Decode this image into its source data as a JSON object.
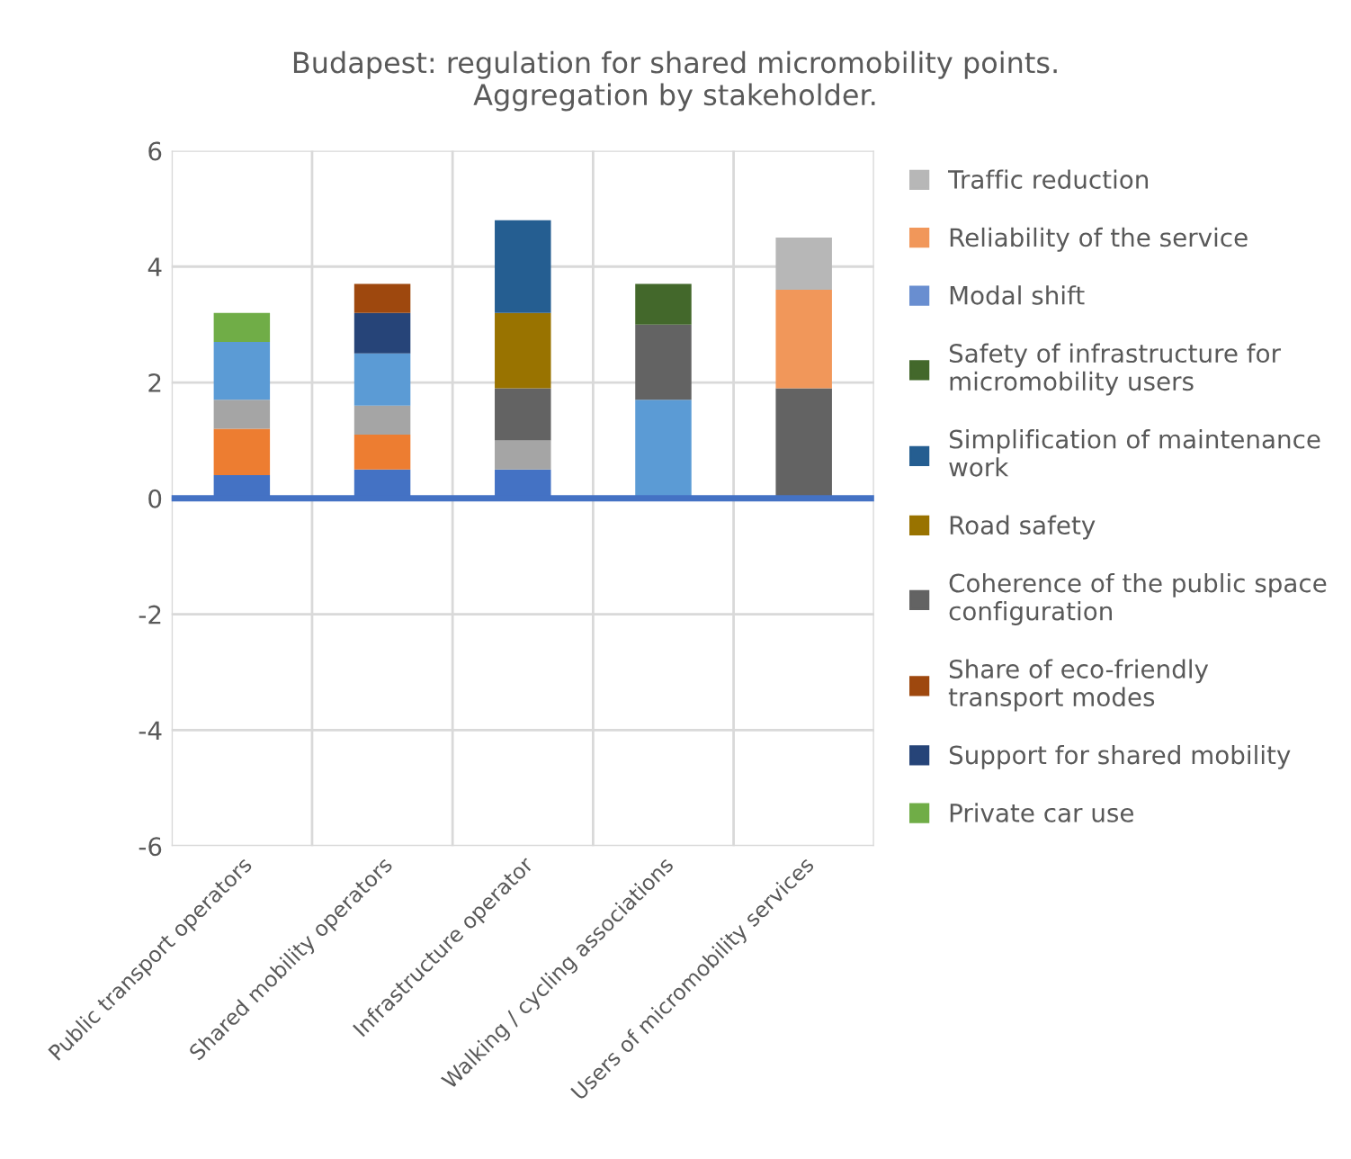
{
  "chart_data": {
    "type": "bar",
    "stacked": true,
    "title": "Budapest: regulation for shared micromobility points. Aggregation by stakeholder.",
    "categories": [
      "Public transport operators",
      "Shared mobility operators",
      "Infrastructure operator",
      "Walking / cycling associations",
      "Users of micromobility services"
    ],
    "series": [
      {
        "color": "#4472c4",
        "values": [
          0.4,
          0.5,
          0.5,
          null,
          null
        ]
      },
      {
        "color": "#ed7d31",
        "values": [
          0.8,
          0.6,
          null,
          null,
          null
        ]
      },
      {
        "color": "#a5a5a5",
        "values": [
          0.5,
          0.5,
          0.5,
          null,
          null
        ]
      },
      {
        "color": "#ffc000",
        "values": [
          null,
          null,
          null,
          null,
          null
        ]
      },
      {
        "color": "#5b9bd5",
        "values": [
          1.0,
          0.9,
          null,
          1.7,
          null
        ]
      },
      {
        "name": "Private car use",
        "color": "#70ad47",
        "values": [
          0.5,
          null,
          null,
          null,
          null
        ]
      },
      {
        "name": "Support for shared mobility",
        "color": "#264478",
        "values": [
          null,
          0.7,
          null,
          null,
          null
        ]
      },
      {
        "name": "Share of eco-friendly transport modes",
        "color": "#9e480e",
        "values": [
          null,
          0.5,
          null,
          null,
          null
        ]
      },
      {
        "name": "Coherence of the public space configuration",
        "color": "#636363",
        "values": [
          null,
          null,
          0.9,
          1.3,
          1.9
        ]
      },
      {
        "name": "Road safety",
        "color": "#997300",
        "values": [
          null,
          null,
          1.3,
          null,
          null
        ]
      },
      {
        "name": "Simplification of maintenance work",
        "color": "#255e91",
        "values": [
          null,
          null,
          1.6,
          null,
          null
        ]
      },
      {
        "name": "Safety of infrastructure for micromobility users",
        "color": "#43682b",
        "values": [
          null,
          null,
          null,
          0.7,
          null
        ]
      },
      {
        "name": "Modal shift",
        "color": "#698ed0",
        "values": [
          null,
          null,
          null,
          null,
          null
        ]
      },
      {
        "name": "Reliability of the service",
        "color": "#f1975a",
        "values": [
          null,
          null,
          null,
          null,
          1.7
        ]
      },
      {
        "name": "Traffic reduction",
        "color": "#b7b7b7",
        "values": [
          null,
          null,
          null,
          null,
          0.9
        ]
      }
    ],
    "ylim": [
      -6,
      6
    ],
    "yticks": [
      -6,
      -4,
      -2,
      0,
      2,
      4,
      6
    ],
    "grid": true,
    "legend": "right",
    "ref_lines": [
      {
        "axis": "y",
        "value": 0,
        "color": "#4472c4"
      }
    ]
  }
}
